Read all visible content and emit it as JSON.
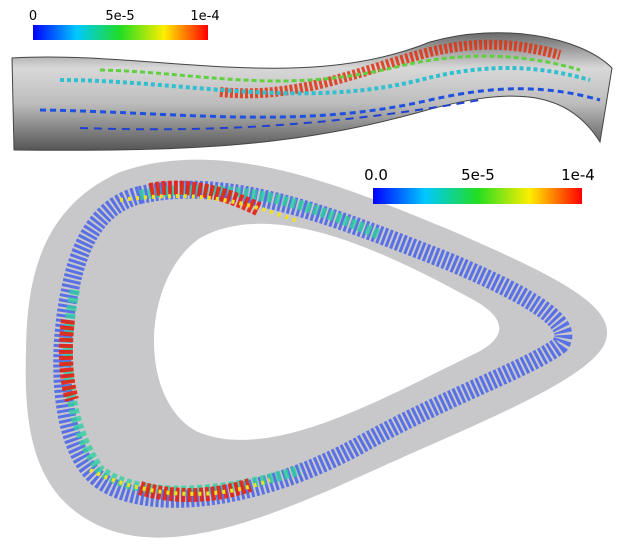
{
  "colorbars": [
    {
      "labels": [
        "0",
        "5e-5",
        "1e-4"
      ]
    },
    {
      "labels": [
        "0.0",
        "5e-5",
        "1e-4"
      ]
    }
  ]
}
